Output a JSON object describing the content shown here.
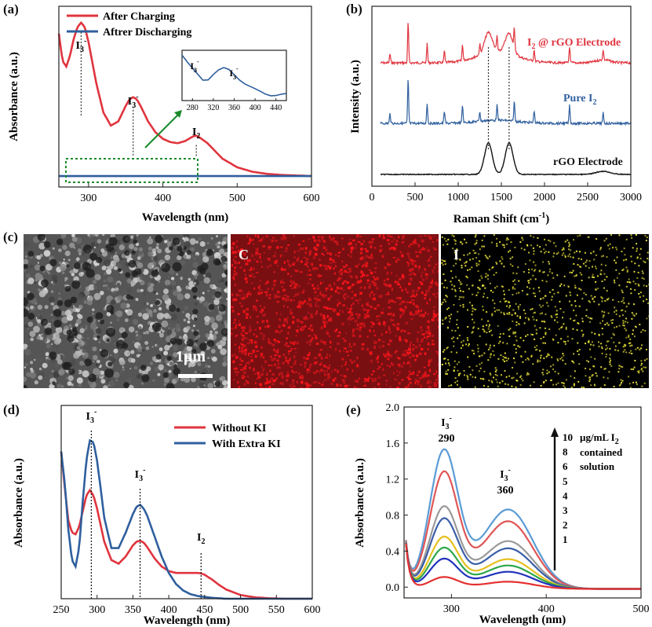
{
  "panels": {
    "a": "(a)",
    "b": "(b)",
    "c": "(c)",
    "d": "(d)",
    "e": "(e)"
  },
  "colors": {
    "red": "#e0343e",
    "blue": "#2f5f9e",
    "black": "#111111",
    "green": "#1a8a2a",
    "sem_c": "#d8262b",
    "sem_i": "#e8e23a"
  },
  "chart_data": [
    {
      "id": "a",
      "type": "line",
      "xlabel": "Wavelength (nm)",
      "ylabel": "Absorbance (a.u.)",
      "xlim": [
        260,
        600
      ],
      "ylim": [
        -0.1,
        1.55
      ],
      "xticks": [
        300,
        400,
        500,
        600
      ],
      "series": [
        {
          "name": "After Charging",
          "color": "#e0343e",
          "x": [
            260,
            265,
            270,
            275,
            280,
            285,
            290,
            295,
            300,
            305,
            310,
            320,
            330,
            340,
            350,
            355,
            360,
            365,
            370,
            380,
            390,
            400,
            410,
            420,
            430,
            440,
            445,
            450,
            460,
            470,
            480,
            500,
            520,
            540,
            560,
            580,
            600
          ],
          "y": [
            1.3,
            1.05,
            1.0,
            1.1,
            1.25,
            1.36,
            1.4,
            1.36,
            1.22,
            1.04,
            0.86,
            0.58,
            0.46,
            0.5,
            0.64,
            0.7,
            0.72,
            0.7,
            0.64,
            0.5,
            0.4,
            0.34,
            0.31,
            0.3,
            0.32,
            0.36,
            0.37,
            0.35,
            0.3,
            0.23,
            0.16,
            0.08,
            0.04,
            0.02,
            0.01,
            0.005,
            0.0
          ]
        },
        {
          "name": "Aftrer Discharging",
          "color": "#2f5f9e",
          "x": [
            260,
            600
          ],
          "y": [
            0.0,
            0.0
          ]
        }
      ],
      "peaks": [
        {
          "label": "I3-",
          "x": 290,
          "y": 1.4
        },
        {
          "label": "I3-",
          "x": 360,
          "y": 0.72
        },
        {
          "label": "I2",
          "x": 445,
          "y": 0.37
        }
      ],
      "inset": {
        "type": "line",
        "xlim": [
          260,
          460
        ],
        "xticks": [
          280,
          320,
          360,
          400,
          440
        ],
        "color": "#2f5f9e",
        "labels": [
          "I3-",
          "I3-"
        ],
        "x": [
          260,
          270,
          280,
          290,
          300,
          310,
          320,
          330,
          340,
          350,
          360,
          370,
          380,
          390,
          400,
          410,
          420,
          430,
          440,
          450,
          460
        ],
        "y": [
          0.95,
          0.78,
          0.65,
          0.55,
          0.45,
          0.46,
          0.55,
          0.62,
          0.66,
          0.64,
          0.56,
          0.46,
          0.36,
          0.28,
          0.22,
          0.18,
          0.15,
          0.13,
          0.12,
          0.12,
          0.12
        ]
      }
    },
    {
      "id": "b",
      "type": "line",
      "xlabel": "Raman Shift (cm-1)",
      "ylabel": "Intensity (a.u.)",
      "xlim": [
        0,
        3000
      ],
      "xticks": [
        0,
        500,
        1000,
        1500,
        2000,
        2500,
        3000
      ],
      "series": [
        {
          "name": "I2 @ rGO Electrode",
          "color": "#e0343e"
        },
        {
          "name": "Pure I2",
          "color": "#2f5f9e"
        },
        {
          "name": "rGO Electrode",
          "color": "#111111"
        }
      ],
      "sharp_peaks": [
        210,
        420,
        640,
        840,
        1050,
        1250,
        1450,
        1650,
        1880,
        2290,
        2680
      ],
      "graphene_peaks": [
        1350,
        1590
      ]
    },
    {
      "id": "d",
      "type": "line",
      "xlabel": "Wavelength (nm)",
      "ylabel": "Absorbance (a.u.)",
      "xlim": [
        250,
        600
      ],
      "ylim": [
        0,
        2.1
      ],
      "xticks": [
        250,
        300,
        350,
        400,
        450,
        500,
        550,
        600
      ],
      "series": [
        {
          "name": "Without KI",
          "color": "#e0343e",
          "x": [
            250,
            255,
            260,
            265,
            270,
            275,
            280,
            285,
            290,
            295,
            300,
            305,
            310,
            320,
            330,
            340,
            350,
            355,
            360,
            365,
            370,
            380,
            390,
            400,
            410,
            420,
            430,
            440,
            445,
            450,
            460,
            470,
            480,
            500,
            520,
            540,
            560,
            580,
            600
          ],
          "y": [
            1.6,
            1.2,
            0.85,
            0.72,
            0.7,
            0.78,
            0.95,
            1.12,
            1.18,
            1.12,
            0.98,
            0.8,
            0.62,
            0.42,
            0.38,
            0.46,
            0.58,
            0.62,
            0.63,
            0.61,
            0.56,
            0.44,
            0.35,
            0.3,
            0.28,
            0.28,
            0.28,
            0.28,
            0.275,
            0.26,
            0.21,
            0.15,
            0.1,
            0.04,
            0.015,
            0.005,
            0.0,
            0.0,
            0.0
          ]
        },
        {
          "name": "With Extra KI",
          "color": "#2f5f9e",
          "x": [
            250,
            255,
            260,
            265,
            270,
            275,
            280,
            285,
            290,
            295,
            300,
            305,
            310,
            320,
            330,
            340,
            350,
            355,
            360,
            365,
            370,
            380,
            390,
            400,
            410,
            420,
            430,
            440,
            450,
            460,
            480,
            500,
            550,
            600
          ],
          "y": [
            1.6,
            1.25,
            0.75,
            0.42,
            0.35,
            0.55,
            1.05,
            1.5,
            1.72,
            1.7,
            1.5,
            1.2,
            0.88,
            0.55,
            0.55,
            0.72,
            0.92,
            1.0,
            1.02,
            0.98,
            0.9,
            0.68,
            0.46,
            0.28,
            0.16,
            0.09,
            0.05,
            0.03,
            0.02,
            0.01,
            0.0,
            0.0,
            0.0,
            0.0
          ]
        }
      ],
      "peaks": [
        {
          "label": "I3-",
          "x": 292
        },
        {
          "label": "I3-",
          "x": 360
        },
        {
          "label": "I2",
          "x": 445
        }
      ]
    },
    {
      "id": "e",
      "type": "line",
      "xlabel": "Wavelength (nm)",
      "ylabel": "Absorbance (a.u.)",
      "xlim": [
        250,
        500
      ],
      "ylim": [
        -0.12,
        2.0
      ],
      "xticks": [
        300,
        400,
        500
      ],
      "yticks": [
        0.0,
        0.4,
        0.8,
        1.2,
        1.6,
        2.0
      ],
      "concentrations": [
        "10",
        "8",
        "6",
        "5",
        "4",
        "3",
        "2",
        "1"
      ],
      "legend_text": [
        "µg/mL I2",
        "contained",
        "solution"
      ],
      "peak_labels": [
        {
          "label": "I3-",
          "value": "290"
        },
        {
          "label": "I3-",
          "value": "360"
        }
      ],
      "series": [
        {
          "name": "10",
          "color": "#5b9bd5",
          "peak290": 1.52,
          "peak360": 0.88
        },
        {
          "name": "8",
          "color": "#e05555",
          "peak290": 1.28,
          "peak360": 0.75
        },
        {
          "name": "6",
          "color": "#9a9a9a",
          "peak290": 0.9,
          "peak360": 0.53
        },
        {
          "name": "5",
          "color": "#3a5ea8",
          "peak290": 0.77,
          "peak360": 0.45
        },
        {
          "name": "4",
          "color": "#e6c020",
          "peak290": 0.57,
          "peak360": 0.33
        },
        {
          "name": "3",
          "color": "#2ea84a",
          "peak290": 0.45,
          "peak360": 0.26
        },
        {
          "name": "2",
          "color": "#2233bb",
          "peak290": 0.33,
          "peak360": 0.19
        },
        {
          "name": "1",
          "color": "#e53030",
          "peak290": 0.13,
          "peak360": 0.08
        }
      ]
    }
  ],
  "sem": {
    "scale_bar": "1μm",
    "element_c": "C",
    "element_i": "I"
  }
}
